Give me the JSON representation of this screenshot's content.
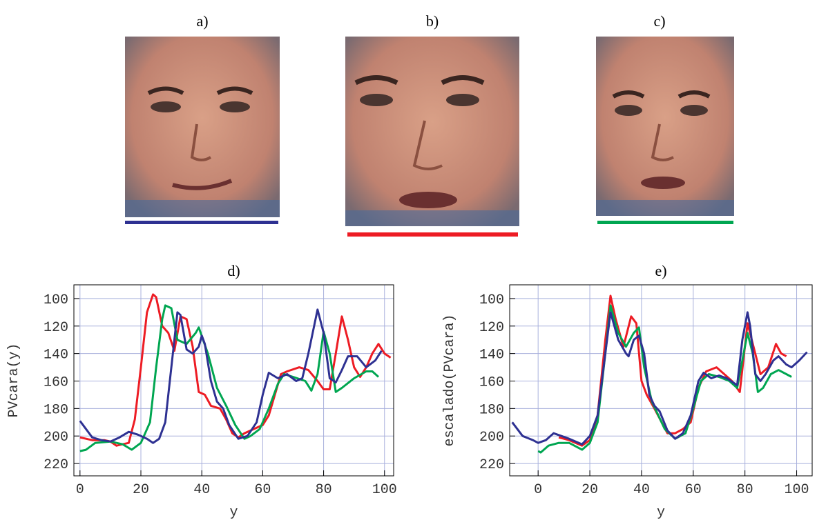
{
  "figure": {
    "panels": [
      "a)",
      "b)",
      "c)"
    ]
  },
  "chart_data": [
    {
      "type": "line",
      "title": "d)",
      "xlabel": "y",
      "ylabel": "PVcara(y)",
      "xlim": [
        -2,
        103
      ],
      "xticks": [
        0,
        20,
        40,
        60,
        80,
        100
      ],
      "ylim": [
        229,
        90
      ],
      "yticks": [
        100,
        120,
        140,
        160,
        180,
        200,
        220
      ],
      "grid": true,
      "series": [
        {
          "color": "#ed1c24",
          "x": [
            0,
            4,
            8,
            10,
            12,
            16,
            18,
            20,
            22,
            24,
            25,
            27,
            29,
            31,
            33,
            35,
            37,
            39,
            41,
            43,
            46,
            48,
            50,
            52,
            54,
            57,
            60,
            62,
            64,
            66,
            68,
            72,
            75,
            78,
            80,
            82,
            84,
            86,
            88,
            90,
            92,
            94,
            96,
            98,
            100,
            102
          ],
          "values": [
            201,
            203,
            203,
            204,
            207,
            205,
            188,
            150,
            110,
            97,
            99,
            120,
            125,
            138,
            113,
            115,
            135,
            168,
            170,
            178,
            180,
            188,
            198,
            201,
            198,
            195,
            192,
            185,
            170,
            155,
            153,
            150,
            152,
            160,
            166,
            166,
            140,
            113,
            130,
            150,
            157,
            150,
            140,
            133,
            140,
            143
          ]
        },
        {
          "color": "#00a651",
          "x": [
            0,
            2,
            5,
            10,
            14,
            17,
            20,
            23,
            25,
            27,
            28,
            30,
            32,
            35,
            38,
            39,
            42,
            45,
            48,
            51,
            54,
            56,
            59,
            62,
            65,
            67,
            70,
            74,
            76,
            78,
            80,
            82,
            84,
            86,
            90,
            94,
            96,
            98
          ],
          "values": [
            211,
            210,
            205,
            204,
            206,
            210,
            205,
            190,
            150,
            115,
            105,
            107,
            130,
            133,
            125,
            121,
            140,
            165,
            178,
            192,
            202,
            200,
            195,
            180,
            162,
            155,
            157,
            160,
            167,
            155,
            124,
            140,
            168,
            165,
            158,
            153,
            153,
            157
          ]
        },
        {
          "color": "#2e3192",
          "x": [
            0,
            2,
            4,
            7,
            10,
            13,
            16,
            19,
            22,
            24,
            26,
            28,
            30,
            32,
            33,
            35,
            37,
            39,
            40,
            41,
            43,
            45,
            47,
            49,
            52,
            55,
            58,
            60,
            62,
            65,
            68,
            71,
            73,
            75,
            78,
            80,
            82,
            84,
            86,
            88,
            91,
            94,
            97,
            99
          ],
          "values": [
            189,
            195,
            201,
            203,
            204,
            201,
            197,
            199,
            202,
            205,
            202,
            190,
            150,
            110,
            112,
            137,
            140,
            135,
            127,
            133,
            160,
            175,
            180,
            192,
            202,
            200,
            190,
            170,
            154,
            158,
            155,
            160,
            158,
            140,
            108,
            125,
            158,
            161,
            152,
            142,
            142,
            150,
            145,
            138
          ]
        }
      ]
    },
    {
      "type": "line",
      "title": "e)",
      "xlabel": "y",
      "ylabel": "escalado(PVcara)",
      "xlim": [
        -11,
        106
      ],
      "xticks": [
        0,
        20,
        40,
        60,
        80,
        100
      ],
      "ylim": [
        229,
        90
      ],
      "yticks": [
        100,
        120,
        140,
        160,
        180,
        200,
        220
      ],
      "grid": true,
      "series": [
        {
          "color": "#ed1c24",
          "x": [
            8,
            12,
            17,
            20,
            23,
            26,
            28,
            30,
            33,
            36,
            38,
            40,
            42,
            45,
            50,
            53,
            56,
            59,
            62,
            65,
            69,
            72,
            75,
            78,
            81,
            84,
            86,
            89,
            92,
            94,
            96
          ],
          "values": [
            201,
            203,
            207,
            203,
            185,
            130,
            98,
            115,
            135,
            113,
            118,
            160,
            170,
            180,
            198,
            198,
            195,
            190,
            165,
            153,
            150,
            155,
            160,
            168,
            118,
            140,
            155,
            150,
            133,
            140,
            142
          ]
        },
        {
          "color": "#00a651",
          "x": [
            0,
            1,
            4,
            8,
            12,
            17,
            20,
            23,
            26,
            28,
            31,
            34,
            37,
            39,
            41,
            44,
            49,
            53,
            57,
            60,
            63,
            66,
            70,
            74,
            77,
            81,
            83,
            85,
            87,
            90,
            93,
            96,
            98
          ],
          "values": [
            211,
            212,
            207,
            205,
            205,
            210,
            205,
            190,
            140,
            105,
            125,
            135,
            125,
            121,
            150,
            175,
            195,
            202,
            198,
            180,
            160,
            155,
            157,
            160,
            165,
            125,
            140,
            168,
            165,
            155,
            152,
            155,
            157
          ]
        },
        {
          "color": "#2e3192",
          "x": [
            -10,
            -6,
            -2,
            0,
            3,
            6,
            9,
            12,
            17,
            20,
            23,
            26,
            28,
            31,
            34,
            35,
            37,
            39,
            41,
            43,
            45,
            47,
            50,
            53,
            56,
            59,
            62,
            64,
            67,
            70,
            73,
            77,
            79,
            81,
            82,
            84,
            86,
            88,
            91,
            93,
            96,
            98,
            101,
            104
          ],
          "values": [
            190,
            200,
            203,
            205,
            203,
            198,
            200,
            202,
            206,
            200,
            185,
            140,
            110,
            130,
            140,
            142,
            130,
            127,
            140,
            170,
            178,
            182,
            196,
            202,
            198,
            185,
            160,
            154,
            158,
            156,
            158,
            163,
            130,
            110,
            120,
            155,
            160,
            155,
            145,
            142,
            148,
            150,
            145,
            139
          ]
        }
      ]
    }
  ]
}
